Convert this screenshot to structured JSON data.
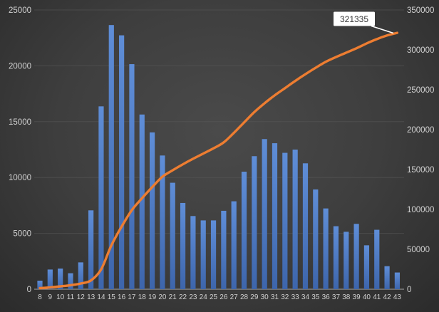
{
  "chart_data": {
    "type": "combo-bar-line",
    "title": "",
    "xlabel": "",
    "ylabel": "",
    "legend": "none",
    "grid": true,
    "categories": [
      8,
      9,
      10,
      11,
      12,
      13,
      14,
      15,
      16,
      17,
      18,
      19,
      20,
      21,
      22,
      23,
      24,
      25,
      26,
      27,
      28,
      29,
      30,
      31,
      32,
      33,
      34,
      35,
      36,
      37,
      38,
      39,
      40,
      41,
      42,
      43
    ],
    "series": [
      {
        "name": "weekly-values-bars",
        "type": "bar",
        "axis": "left",
        "color": "#4a7bc8",
        "values": [
          760,
          1760,
          1850,
          1430,
          2400,
          7060,
          16370,
          23650,
          22730,
          20150,
          15640,
          14040,
          11970,
          9530,
          7720,
          6550,
          6160,
          6160,
          7020,
          7870,
          10520,
          11910,
          13440,
          13070,
          12210,
          12500,
          11270,
          8930,
          7230,
          5640,
          5140,
          5850,
          3930,
          5320,
          2060,
          1495
        ]
      },
      {
        "name": "cumulative-total-line",
        "type": "line",
        "axis": "right",
        "color": "#ED7D31",
        "smooth": true,
        "values": [
          1300,
          2300,
          3600,
          5000,
          7100,
          11000,
          25000,
          55000,
          78500,
          99000,
          114000,
          128000,
          141000,
          149000,
          156500,
          163500,
          170000,
          176500,
          184000,
          196000,
          209000,
          222000,
          233000,
          243000,
          252000,
          261000,
          269500,
          277500,
          285000,
          291000,
          296500,
          302000,
          308000,
          313500,
          318000,
          321335
        ]
      }
    ],
    "left_axis": {
      "min": 0,
      "max": 25000,
      "step": 5000,
      "ticks": [
        0,
        5000,
        10000,
        15000,
        20000,
        25000
      ]
    },
    "right_axis": {
      "min": 0,
      "max": 350000,
      "step": 50000,
      "ticks": [
        0,
        50000,
        100000,
        150000,
        200000,
        250000,
        300000,
        350000
      ]
    },
    "annotation": {
      "text": "321335",
      "category": 43,
      "value": 321335
    }
  },
  "colors": {
    "background_center": "#4a4a4a",
    "background_edge": "#2b2b2b",
    "gridline": "#5a5a5a",
    "axis_line": "#909090",
    "tick_label": "#d2d2d2",
    "bar_fill_top": "#5f8ed8",
    "bar_fill_bottom": "#3d65ab",
    "line_stroke": "#ED7D31",
    "callout_bg": "#ffffff",
    "callout_text": "#3a3a3a",
    "leader_line": "#ffffff"
  }
}
